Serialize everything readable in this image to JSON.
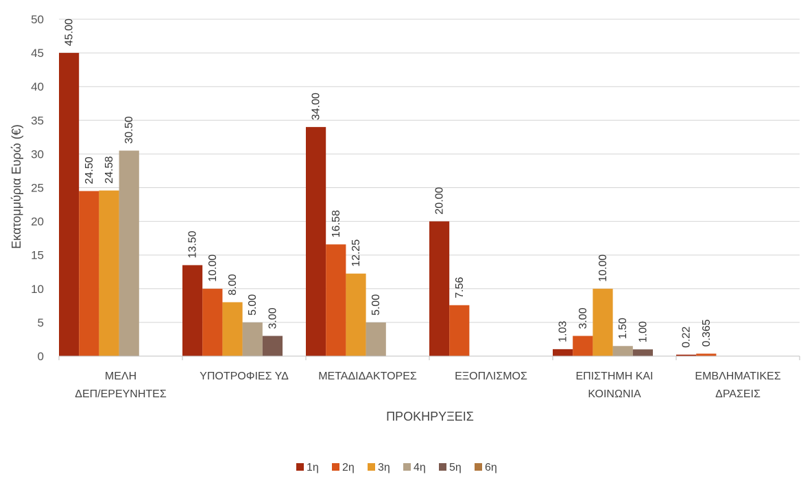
{
  "chart_data": {
    "type": "bar",
    "ylabel": "Εκατομμύρια Ευρώ (€)",
    "xlabel": "ΠΡΟΚΗΡΥΞΕΙΣ",
    "ylim": [
      0,
      50
    ],
    "yticks": [
      0,
      5,
      10,
      15,
      20,
      25,
      30,
      35,
      40,
      45,
      50
    ],
    "grid": true,
    "legend_position": "bottom",
    "categories": [
      [
        "ΜΕΛΗ",
        "ΔΕΠ/ΕΡΕΥΝΗΤΕΣ"
      ],
      [
        "ΥΠΟΤΡΟΦΙΕΣ ΥΔ"
      ],
      [
        "ΜΕΤΑΔΙΔΑΚΤΟΡΕΣ"
      ],
      [
        "ΕΞΟΠΛΙΣΜΟΣ"
      ],
      [
        "ΕΠΙΣΤΗΜΗ ΚΑΙ",
        "ΚΟΙΝΩΝΙΑ"
      ],
      [
        "ΕΜΒΛΗΜΑΤΙΚΕΣ",
        "ΔΡΑΣΕΙΣ"
      ]
    ],
    "series": [
      {
        "name": "1η",
        "color": "#a52a0f",
        "values": [
          45.0,
          13.5,
          34.0,
          20.0,
          1.03,
          0.22
        ],
        "labels": [
          "45.00",
          "13.50",
          "34.00",
          "20.00",
          "1.03",
          "0.22"
        ]
      },
      {
        "name": "2η",
        "color": "#d9541a",
        "values": [
          24.5,
          10.0,
          16.58,
          7.56,
          3.0,
          0.365
        ],
        "labels": [
          "24.50",
          "10.00",
          "16.58",
          "7.56",
          "3.00",
          "0.365"
        ]
      },
      {
        "name": "3η",
        "color": "#e69a29",
        "values": [
          24.58,
          8.0,
          12.25,
          null,
          10.0,
          null
        ],
        "labels": [
          "24.58",
          "8.00",
          "12.25",
          "",
          "10.00",
          ""
        ]
      },
      {
        "name": "4η",
        "color": "#b5a287",
        "values": [
          30.5,
          5.0,
          5.0,
          null,
          1.5,
          null
        ],
        "labels": [
          "30.50",
          "5.00",
          "5.00",
          "",
          "1.50",
          ""
        ]
      },
      {
        "name": "5η",
        "color": "#7c5a4f",
        "values": [
          null,
          3.0,
          null,
          null,
          1.0,
          null
        ],
        "labels": [
          "",
          "3.00",
          "",
          "",
          "1.00",
          ""
        ]
      },
      {
        "name": "6η",
        "color": "#b0773d",
        "values": [
          null,
          null,
          null,
          null,
          null,
          null
        ],
        "labels": [
          "",
          "",
          "",
          "",
          "",
          ""
        ]
      }
    ]
  }
}
